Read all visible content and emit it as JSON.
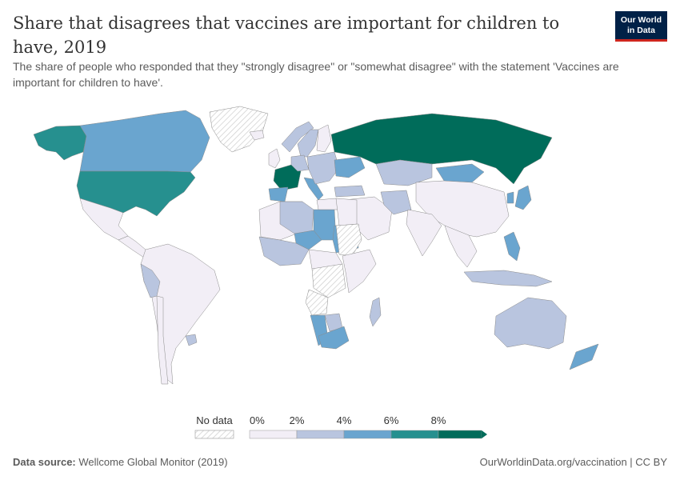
{
  "header": {
    "title": "Share that disagrees that vaccines are important for children to have, 2019",
    "subtitle": "The share of people who responded that they \"strongly disagree\" or \"somewhat disagree\" with the statement 'Vaccines are important for children to have'."
  },
  "logo": {
    "line1": "Our World",
    "line2": "in Data"
  },
  "legend": {
    "nodata_label": "No data",
    "ticks": [
      "0%",
      "2%",
      "4%",
      "6%",
      "8%"
    ],
    "bins": [
      {
        "range": "0-2%",
        "color": "#f2eef6"
      },
      {
        "range": "2-4%",
        "color": "#b9c5df"
      },
      {
        "range": "4-6%",
        "color": "#6aa5cf"
      },
      {
        "range": "6-8%",
        "color": "#26908f"
      },
      {
        "range": ">8%",
        "color": "#006c5a"
      }
    ],
    "nodata_color": "#e5e5e5"
  },
  "regions": [
    {
      "name": "Alaska",
      "bin": 3
    },
    {
      "name": "Canada",
      "bin": 2
    },
    {
      "name": "Greenland",
      "bin": -1
    },
    {
      "name": "United States",
      "bin": 3
    },
    {
      "name": "Mexico",
      "bin": 0
    },
    {
      "name": "Central America",
      "bin": 0
    },
    {
      "name": "South America",
      "bin": 0
    },
    {
      "name": "Peru",
      "bin": 1
    },
    {
      "name": "Chile",
      "bin": 0
    },
    {
      "name": "Uruguay",
      "bin": 1
    },
    {
      "name": "Iceland",
      "bin": 0
    },
    {
      "name": "Norway",
      "bin": 1
    },
    {
      "name": "Sweden",
      "bin": 1
    },
    {
      "name": "Finland",
      "bin": 0
    },
    {
      "name": "United Kingdom",
      "bin": 0
    },
    {
      "name": "France",
      "bin": 4
    },
    {
      "name": "Spain",
      "bin": 2
    },
    {
      "name": "Germany",
      "bin": 1
    },
    {
      "name": "Italy",
      "bin": 2
    },
    {
      "name": "Eastern Europe",
      "bin": 1
    },
    {
      "name": "Ukraine",
      "bin": 2
    },
    {
      "name": "Russia",
      "bin": 4
    },
    {
      "name": "Kazakhstan",
      "bin": 1
    },
    {
      "name": "Mongolia",
      "bin": 2
    },
    {
      "name": "China",
      "bin": 0
    },
    {
      "name": "Japan",
      "bin": 2
    },
    {
      "name": "Korea",
      "bin": 2
    },
    {
      "name": "Turkey",
      "bin": 1
    },
    {
      "name": "Middle East",
      "bin": 0
    },
    {
      "name": "Iran",
      "bin": 1
    },
    {
      "name": "India",
      "bin": 0
    },
    {
      "name": "Southeast Asia",
      "bin": 0
    },
    {
      "name": "Philippines",
      "bin": 2
    },
    {
      "name": "Indonesia",
      "bin": 1
    },
    {
      "name": "Australia",
      "bin": 1
    },
    {
      "name": "New Zealand",
      "bin": 2
    },
    {
      "name": "North Africa",
      "bin": 0
    },
    {
      "name": "Algeria",
      "bin": 1
    },
    {
      "name": "Niger",
      "bin": 2
    },
    {
      "name": "Chad",
      "bin": 2
    },
    {
      "name": "Libya",
      "bin": 0
    },
    {
      "name": "Egypt",
      "bin": 0
    },
    {
      "name": "Sudan",
      "bin": 2
    },
    {
      "name": "Eritrea",
      "bin": -1
    },
    {
      "name": "West Africa",
      "bin": 1
    },
    {
      "name": "Central Africa",
      "bin": 0
    },
    {
      "name": "Congo DR",
      "bin": -1
    },
    {
      "name": "Angola",
      "bin": -1
    },
    {
      "name": "East Africa",
      "bin": 0
    },
    {
      "name": "Namibia",
      "bin": 2
    },
    {
      "name": "Botswana",
      "bin": 1
    },
    {
      "name": "South Africa",
      "bin": 2
    },
    {
      "name": "Madagascar",
      "bin": 1
    }
  ],
  "footer": {
    "source_label": "Data source:",
    "source_text": "Wellcome Global Monitor (2019)",
    "url": "OurWorldinData.org/vaccination | CC BY"
  }
}
